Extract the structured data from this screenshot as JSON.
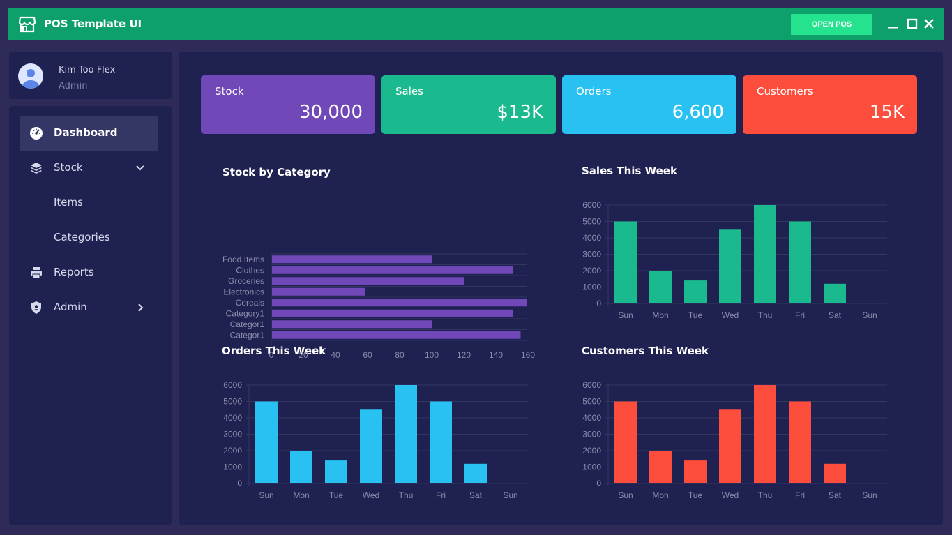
{
  "app": {
    "title": "POS Template UI",
    "open_pos_label": "OPEN POS"
  },
  "user": {
    "name": "Kim Too Flex",
    "role": "Admin"
  },
  "sidebar": {
    "items": [
      {
        "label": "Dashboard",
        "icon": "speedometer-icon"
      },
      {
        "label": "Stock",
        "icon": "layers-icon"
      },
      {
        "label": "Items"
      },
      {
        "label": "Categories"
      },
      {
        "label": "Reports",
        "icon": "printer-icon"
      },
      {
        "label": "Admin",
        "icon": "shield-icon"
      }
    ]
  },
  "cards": [
    {
      "label": "Stock",
      "value": "30,000",
      "color": "#7048b8"
    },
    {
      "label": "Sales",
      "value": "$13K",
      "color": "#1bb98e"
    },
    {
      "label": "Orders",
      "value": "6,600",
      "color": "#29c0f2"
    },
    {
      "label": "Customers",
      "value": "15K",
      "color": "#fd4e3d"
    }
  ],
  "chart_data": [
    {
      "type": "bar",
      "orientation": "horizontal",
      "title": "Stock by Category",
      "categories": [
        "Food Items",
        "Clothes",
        "Groceries",
        "Electronics",
        "Cereals",
        "Category1",
        "Categor1",
        "Categor1"
      ],
      "values": [
        100,
        150,
        120,
        58,
        159,
        150,
        100,
        155
      ],
      "xlim": [
        0,
        160
      ],
      "xticks": [
        0,
        20,
        40,
        60,
        80,
        100,
        120,
        140,
        160
      ],
      "color": "#7048b8"
    },
    {
      "type": "bar",
      "title": "Sales This Week",
      "categories": [
        "Sun",
        "Mon",
        "Tue",
        "Wed",
        "Thu",
        "Fri",
        "Sat",
        "Sun"
      ],
      "values": [
        5000,
        2000,
        1400,
        4500,
        6000,
        5000,
        1200,
        0
      ],
      "ylim": [
        0,
        6000
      ],
      "yticks": [
        0,
        1000,
        2000,
        3000,
        4000,
        5000,
        6000
      ],
      "color": "#1bb98e"
    },
    {
      "type": "bar",
      "title": "Orders This Week",
      "categories": [
        "Sun",
        "Mon",
        "Tue",
        "Wed",
        "Thu",
        "Fri",
        "Sat",
        "Sun"
      ],
      "values": [
        5000,
        2000,
        1400,
        4500,
        6000,
        5000,
        1200,
        0
      ],
      "ylim": [
        0,
        6000
      ],
      "yticks": [
        0,
        1000,
        2000,
        3000,
        4000,
        5000,
        6000
      ],
      "color": "#29c0f2"
    },
    {
      "type": "bar",
      "title": "Customers This Week",
      "categories": [
        "Sun",
        "Mon",
        "Tue",
        "Wed",
        "Thu",
        "Fri",
        "Sat",
        "Sun"
      ],
      "values": [
        5000,
        2000,
        1400,
        4500,
        6000,
        5000,
        1200,
        0
      ],
      "ylim": [
        0,
        6000
      ],
      "yticks": [
        0,
        1000,
        2000,
        3000,
        4000,
        5000,
        6000
      ],
      "color": "#fd4e3d"
    }
  ]
}
